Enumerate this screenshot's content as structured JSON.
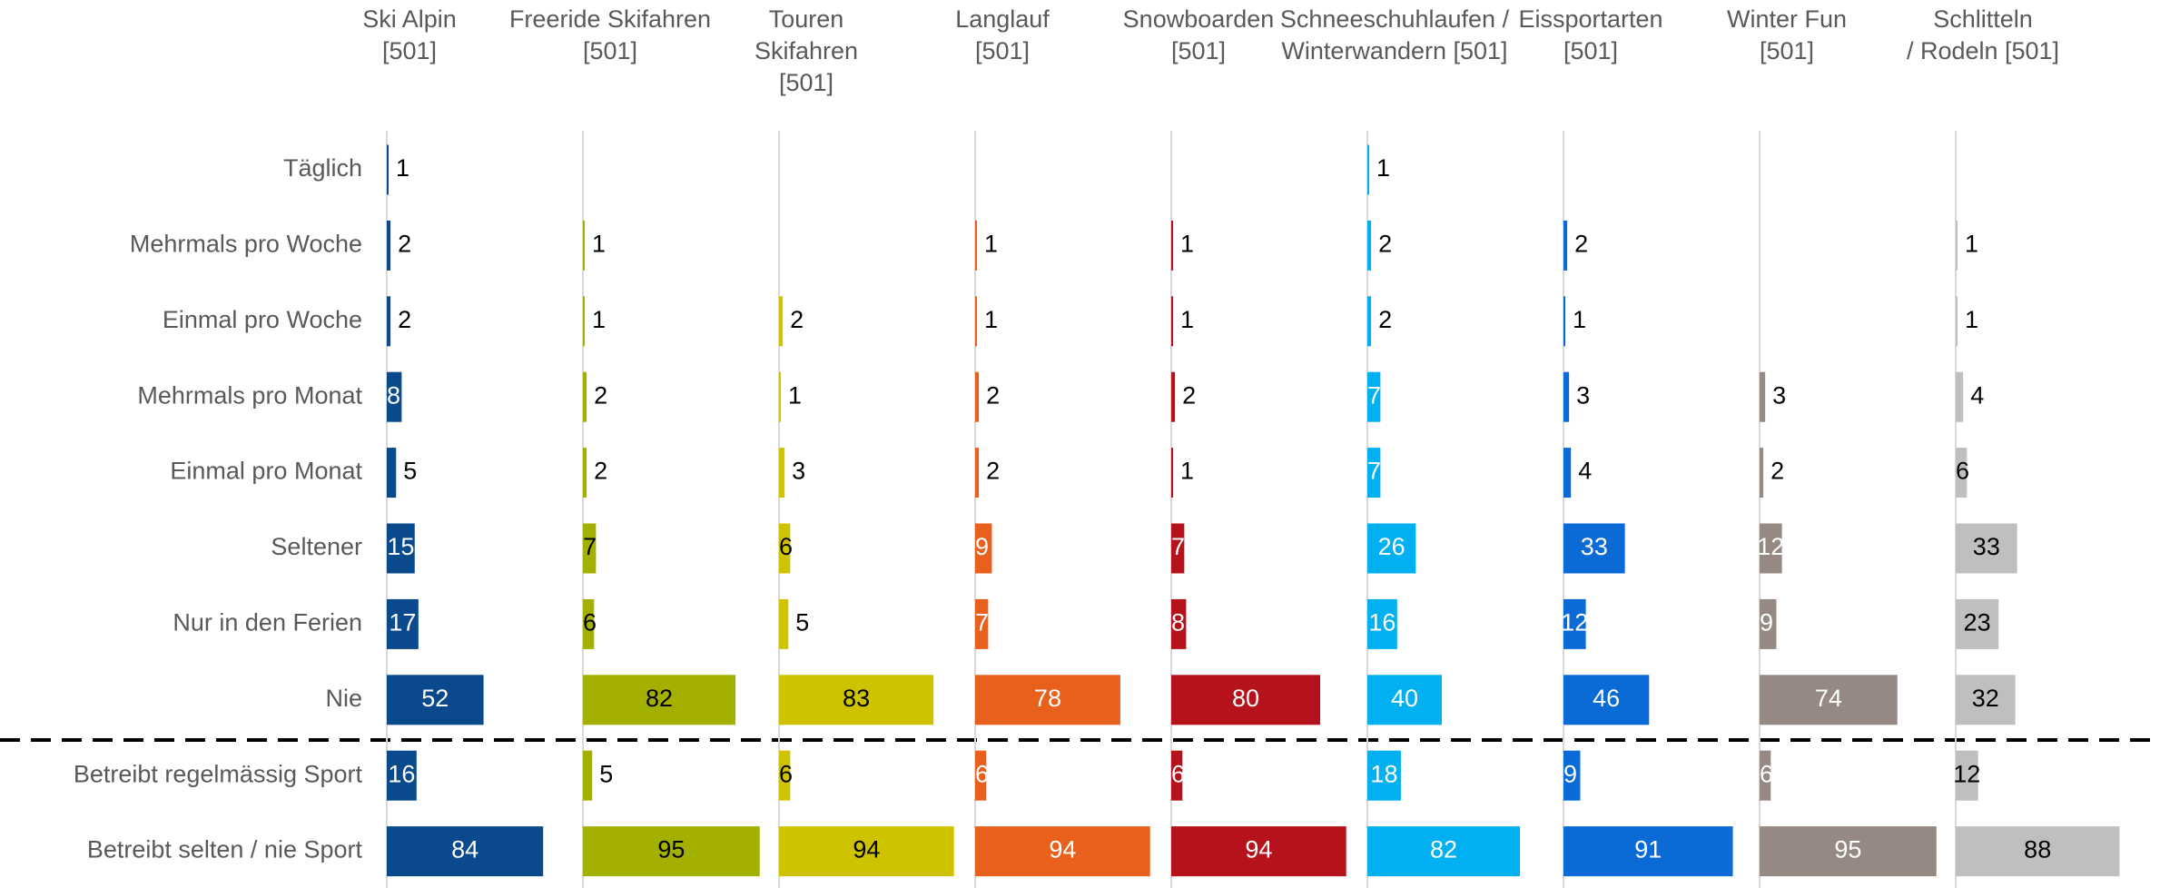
{
  "chart_data": {
    "type": "bar",
    "orientation": "horizontal",
    "categories": [
      "Täglich",
      "Mehrmals pro Woche",
      "Einmal pro Woche",
      "Mehrmals pro Monat",
      "Einmal pro Monat",
      "Seltener",
      "Nur in den Ferien",
      "Nie",
      "Betreibt regelmässig Sport",
      "Betreibt selten / nie Sport"
    ],
    "xlim": [
      0,
      100
    ],
    "series": [
      {
        "label_lines": [
          "Ski Alpin",
          "[501]"
        ],
        "color": "#0a4a8c",
        "values": [
          1,
          2,
          2,
          8,
          5,
          15,
          17,
          52,
          16,
          84
        ]
      },
      {
        "label_lines": [
          "Freeride Skifahren",
          "[501]"
        ],
        "color": "#a3b000",
        "values": [
          null,
          1,
          1,
          2,
          2,
          7,
          6,
          82,
          5,
          95
        ]
      },
      {
        "label_lines": [
          "Touren",
          "Skifahren",
          "[501]"
        ],
        "color": "#cfc300",
        "values": [
          null,
          null,
          2,
          1,
          3,
          6,
          5,
          83,
          6,
          94
        ]
      },
      {
        "label_lines": [
          "Langlauf",
          "[501]"
        ],
        "color": "#e8601c",
        "values": [
          null,
          1,
          1,
          2,
          2,
          9,
          7,
          78,
          6,
          94
        ]
      },
      {
        "label_lines": [
          "Snowboarden",
          "[501]"
        ],
        "color": "#b5121b",
        "values": [
          null,
          1,
          1,
          2,
          1,
          7,
          8,
          80,
          6,
          94
        ]
      },
      {
        "label_lines": [
          "Schneeschuhlaufen /",
          "Winterwandern [501]"
        ],
        "color": "#00b0f0",
        "values": [
          1,
          2,
          2,
          7,
          7,
          26,
          16,
          40,
          18,
          82
        ]
      },
      {
        "label_lines": [
          "Eissportarten",
          "[501]"
        ],
        "color": "#0a6ad6",
        "values": [
          null,
          2,
          1,
          3,
          4,
          33,
          12,
          46,
          9,
          91
        ]
      },
      {
        "label_lines": [
          "Winter Fun",
          "[501]"
        ],
        "color": "#968882",
        "values": [
          null,
          null,
          null,
          3,
          2,
          12,
          9,
          74,
          6,
          95
        ]
      },
      {
        "label_lines": [
          "Schlitteln",
          "/ Rodeln   [501]"
        ],
        "color": "#bfbfbf",
        "values": [
          null,
          1,
          1,
          4,
          6,
          33,
          23,
          32,
          12,
          88
        ]
      }
    ]
  }
}
